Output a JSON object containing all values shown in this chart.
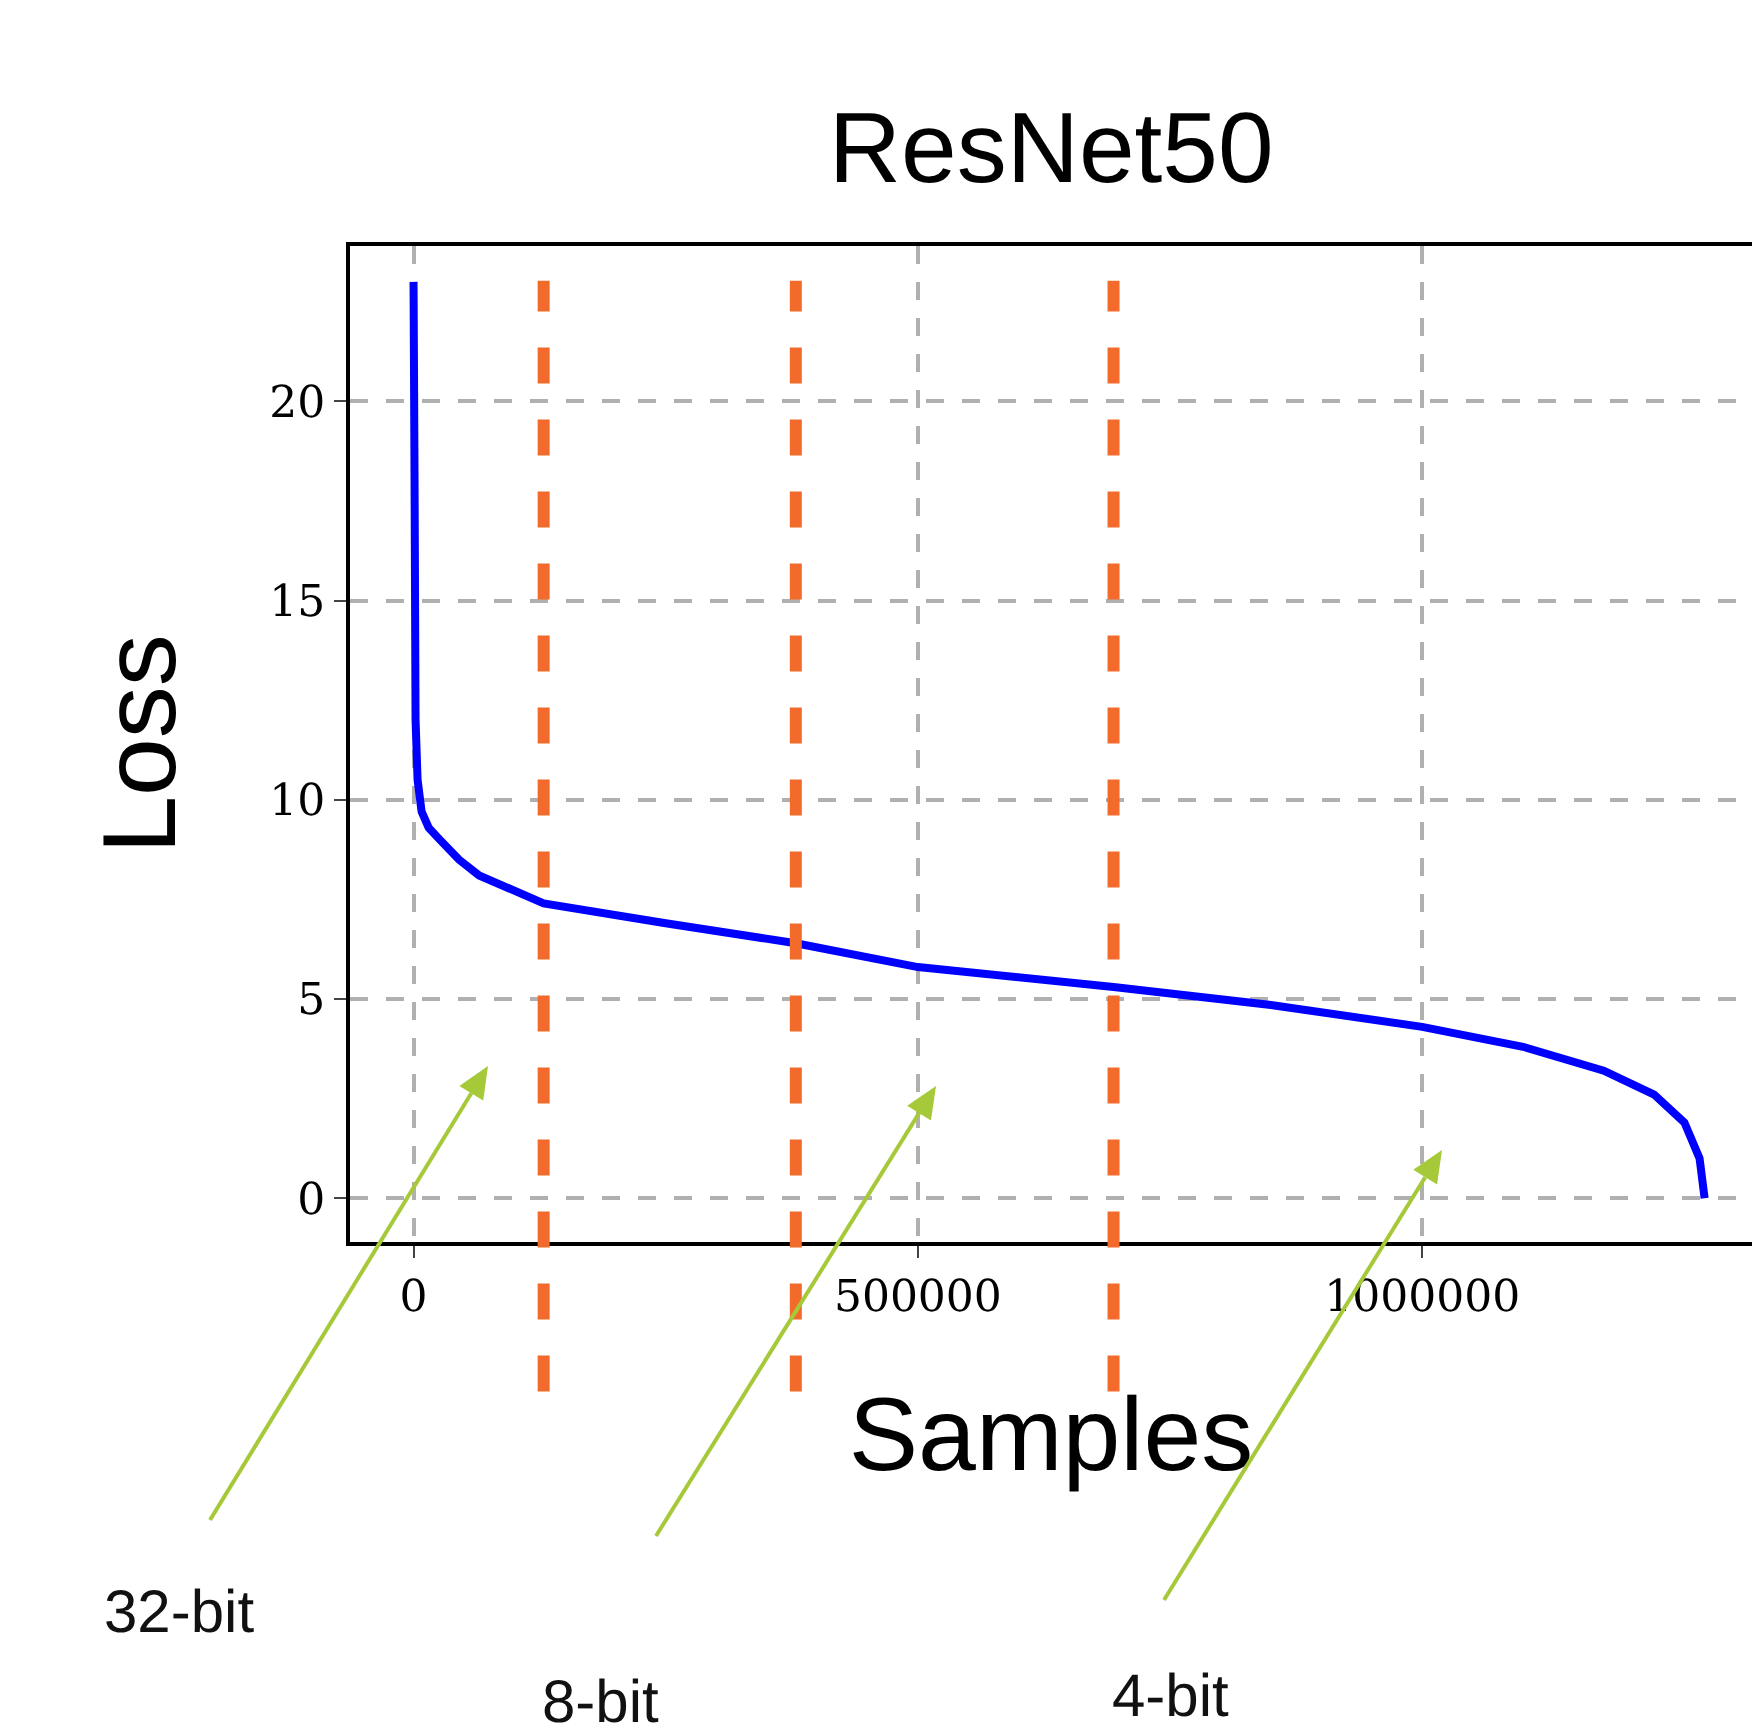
{
  "chart_data": {
    "type": "line",
    "title": "ResNet50",
    "xlabel": "Samples",
    "ylabel": "Loss",
    "x": [
      0,
      1000,
      2000,
      4000,
      8000,
      15000,
      26000,
      45000,
      65000,
      129000,
      250000,
      379000,
      500000,
      694000,
      850000,
      1000000,
      1100000,
      1180000,
      1230000,
      1260000,
      1275000,
      1280000
    ],
    "series": [
      {
        "color": "#0000ff",
        "values": [
          23,
          18,
          12,
          10.5,
          9.7,
          9.3,
          9.0,
          8.5,
          8.1,
          7.4,
          6.9,
          6.4,
          5.8,
          5.3,
          4.85,
          4.3,
          3.8,
          3.2,
          2.6,
          1.9,
          1.0,
          0
        ]
      }
    ],
    "xlim": [
      -63000,
      1327000
    ],
    "ylim": [
      -1.1,
      23.9
    ],
    "xticks": [
      0,
      500000,
      1000000
    ],
    "yticks": [
      0,
      5,
      10,
      15,
      20
    ],
    "grid": true,
    "marker": "none",
    "line_style": "solid",
    "ref_lines": [
      {
        "axis": "x",
        "value": 129000,
        "color": "#f26b2a",
        "line_style": "dashed"
      },
      {
        "axis": "x",
        "value": 379000,
        "color": "#f26b2a",
        "line_style": "dashed"
      },
      {
        "axis": "x",
        "value": 694000,
        "color": "#f26b2a",
        "line_style": "dashed"
      }
    ],
    "annotations": [
      "32-bit",
      "8-bit",
      "4-bit"
    ]
  }
}
